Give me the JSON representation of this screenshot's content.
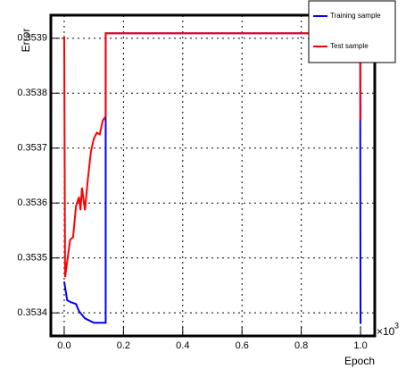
{
  "chart_data": {
    "type": "line",
    "title": "Error",
    "x_label": "Epoch",
    "x_multiplier": "×10",
    "x_multiplier_exp": "3",
    "xlim": [
      -0.045,
      1.048
    ],
    "ylim": [
      0.353358,
      0.353942
    ],
    "xticks": [
      {
        "value": 0,
        "label": "0.0"
      },
      {
        "value": 0.2,
        "label": "0.2"
      },
      {
        "value": 0.4,
        "label": "0.4"
      },
      {
        "value": 0.6,
        "label": "0.6"
      },
      {
        "value": 0.8,
        "label": "0.8"
      },
      {
        "value": 1,
        "label": "1.0"
      }
    ],
    "yticks": [
      0.3534,
      0.3535,
      0.3536,
      0.3537,
      0.3538,
      0.3539
    ],
    "grid": true,
    "legend": "top-right",
    "series": [
      {
        "name": "Training sample",
        "color": "#0000ff",
        "x": [
          0,
          0.01,
          0.02,
          0.04,
          0.05,
          0.07,
          0.1,
          0.14,
          0.14,
          0.999,
          0.999,
          1.0
        ],
        "values": [
          0.353457,
          0.353423,
          0.35342,
          0.353416,
          0.353403,
          0.35339,
          0.353382,
          0.353382,
          0.353909,
          0.353909,
          0.35375,
          0.35338
        ]
      },
      {
        "name": "Test sample",
        "color": "#ff0000",
        "x": [
          0,
          0.003,
          0.02,
          0.03,
          0.04,
          0.05,
          0.055,
          0.06,
          0.07,
          0.08,
          0.09,
          0.1,
          0.11,
          0.12,
          0.13,
          0.14,
          0.14,
          0.999,
          1.0
        ],
        "values": [
          0.353904,
          0.353465,
          0.353533,
          0.353538,
          0.353595,
          0.353611,
          0.353587,
          0.353628,
          0.353587,
          0.353644,
          0.353693,
          0.353717,
          0.353728,
          0.353725,
          0.35375,
          0.353758,
          0.353909,
          0.353909,
          0.35375
        ]
      }
    ]
  }
}
